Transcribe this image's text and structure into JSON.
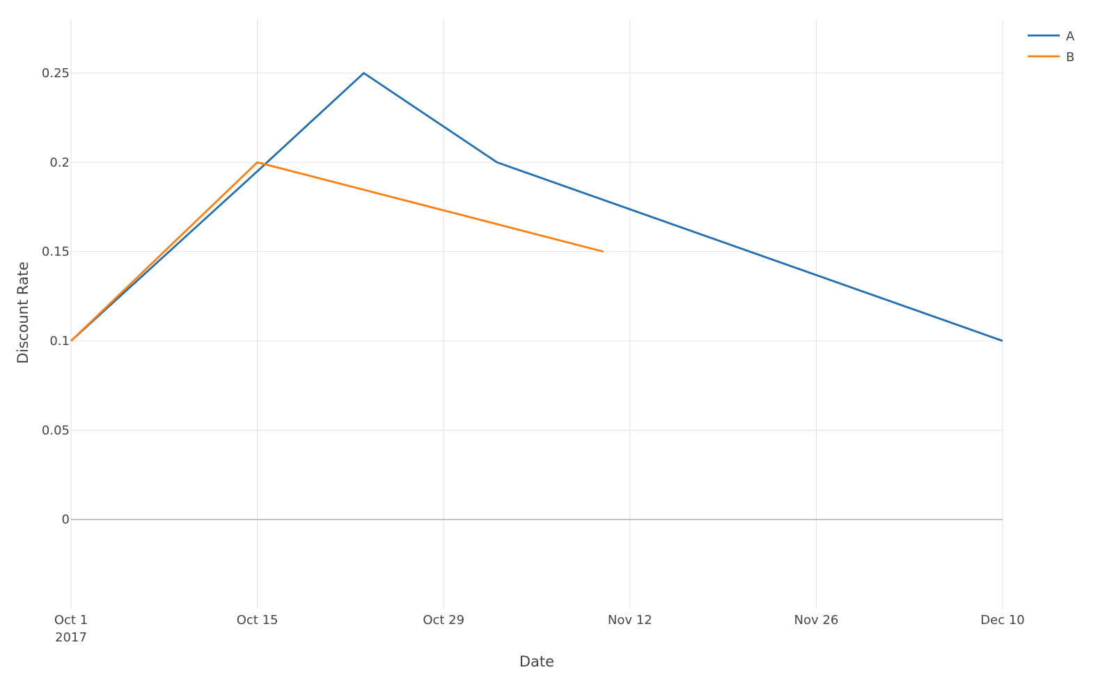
{
  "chart_data": {
    "type": "line",
    "title": "",
    "xlabel": "Date",
    "ylabel": "Discount Rate",
    "x_type": "date",
    "xlim": [
      "2017-10-01",
      "2017-12-10"
    ],
    "ylim": [
      -0.05,
      0.28
    ],
    "x_ticks": [
      {
        "date": "2017-10-01",
        "label": "Oct 1",
        "sublabel": "2017"
      },
      {
        "date": "2017-10-15",
        "label": "Oct 15",
        "sublabel": ""
      },
      {
        "date": "2017-10-29",
        "label": "Oct 29",
        "sublabel": ""
      },
      {
        "date": "2017-11-12",
        "label": "Nov 12",
        "sublabel": ""
      },
      {
        "date": "2017-11-26",
        "label": "Nov 26",
        "sublabel": ""
      },
      {
        "date": "2017-12-10",
        "label": "Dec 10",
        "sublabel": ""
      }
    ],
    "y_ticks": [
      {
        "value": 0,
        "label": "0"
      },
      {
        "value": 0.05,
        "label": "0.05"
      },
      {
        "value": 0.1,
        "label": "0.1"
      },
      {
        "value": 0.15,
        "label": "0.15"
      },
      {
        "value": 0.2,
        "label": "0.2"
      },
      {
        "value": 0.25,
        "label": "0.25"
      }
    ],
    "grid": true,
    "legend_position": "top-right",
    "series": [
      {
        "name": "A",
        "color": "#1f6fb2",
        "x": [
          "2017-10-01",
          "2017-10-15",
          "2017-10-23",
          "2017-11-02",
          "2017-12-10"
        ],
        "y": [
          0.1,
          0.195,
          0.25,
          0.2,
          0.1
        ]
      },
      {
        "name": "B",
        "color": "#ff7f0e",
        "x": [
          "2017-10-01",
          "2017-10-15",
          "2017-11-10"
        ],
        "y": [
          0.1,
          0.2,
          0.15
        ]
      }
    ]
  }
}
